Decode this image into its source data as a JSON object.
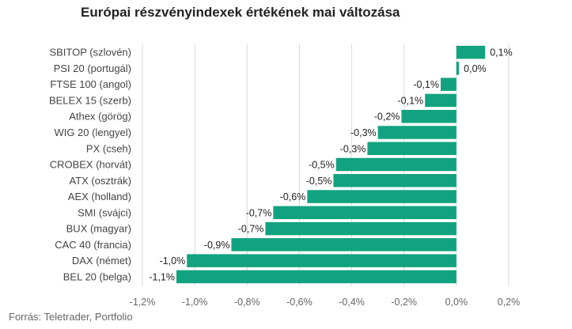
{
  "chart_data": {
    "type": "bar",
    "orientation": "horizontal",
    "title": "Európai részvényindexek értékének mai változása",
    "source": "Forrás: Teletrader, Portfolio",
    "categories": [
      "SBITOP (szlovén)",
      "PSI 20 (portugál)",
      "FTSE 100 (angol)",
      "BELEX 15 (szerb)",
      "Athex (görög)",
      "WIG 20 (lengyel)",
      "PX (cseh)",
      "CROBEX (horvát)",
      "ATX (osztrák)",
      "AEX (holland)",
      "SMI (svájci)",
      "BUX (magyar)",
      "CAC 40 (francia)",
      "DAX (német)",
      "BEL 20 (belga)"
    ],
    "values": [
      0.11,
      0.01,
      -0.06,
      -0.12,
      -0.21,
      -0.3,
      -0.34,
      -0.46,
      -0.47,
      -0.57,
      -0.7,
      -0.73,
      -0.86,
      -1.03,
      -1.07
    ],
    "value_labels": [
      "0,1%",
      "0,0%",
      "-0,1%",
      "-0,1%",
      "-0,2%",
      "-0,3%",
      "-0,3%",
      "-0,5%",
      "-0,5%",
      "-0,6%",
      "-0,7%",
      "-0,7%",
      "-0,9%",
      "-1,0%",
      "-1,1%"
    ],
    "xlim": [
      -1.2,
      0.2
    ],
    "xticks": [
      -1.2,
      -1.0,
      -0.8,
      -0.6,
      -0.4,
      -0.2,
      0.0,
      0.2
    ],
    "xtick_labels": [
      "-1,2%",
      "-1,0%",
      "-0,8%",
      "-0,6%",
      "-0,4%",
      "-0,2%",
      "0,0%",
      "0,2%"
    ],
    "grid": true,
    "bar_color": "#11a37f",
    "grid_color": "#d9d9d9",
    "legend": "none"
  }
}
